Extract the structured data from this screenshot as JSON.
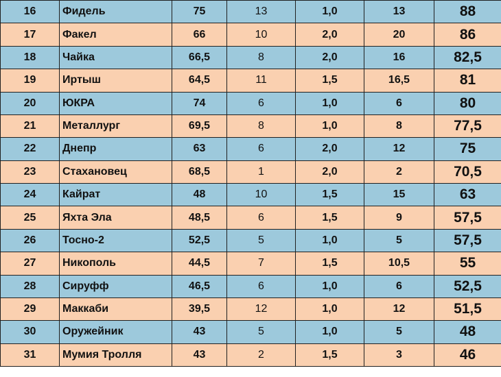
{
  "colors": {
    "row_blue": "#9dc9dc",
    "row_peach": "#fad0b0",
    "border": "#1f1f1f",
    "text": "#111111"
  },
  "rows": [
    {
      "num": "16",
      "team": "Фидель",
      "c": "75",
      "d": "13",
      "e": "1,0",
      "f": "13",
      "total": "88"
    },
    {
      "num": "17",
      "team": "Факел",
      "c": "66",
      "d": "10",
      "e": "2,0",
      "f": "20",
      "total": "86"
    },
    {
      "num": "18",
      "team": "Чайка",
      "c": "66,5",
      "d": "8",
      "e": "2,0",
      "f": "16",
      "total": "82,5"
    },
    {
      "num": "19",
      "team": "Иртыш",
      "c": "64,5",
      "d": "11",
      "e": "1,5",
      "f": "16,5",
      "total": "81"
    },
    {
      "num": "20",
      "team": "ЮКРА",
      "c": "74",
      "d": "6",
      "e": "1,0",
      "f": "6",
      "total": "80"
    },
    {
      "num": "21",
      "team": "Металлург",
      "c": "69,5",
      "d": "8",
      "e": "1,0",
      "f": "8",
      "total": "77,5"
    },
    {
      "num": "22",
      "team": "Днепр",
      "c": "63",
      "d": "6",
      "e": "2,0",
      "f": "12",
      "total": "75"
    },
    {
      "num": "23",
      "team": "Стахановец",
      "c": "68,5",
      "d": "1",
      "e": "2,0",
      "f": "2",
      "total": "70,5"
    },
    {
      "num": "24",
      "team": "Кайрат",
      "c": "48",
      "d": "10",
      "e": "1,5",
      "f": "15",
      "total": "63"
    },
    {
      "num": "25",
      "team": "Яхта Эла",
      "c": "48,5",
      "d": "6",
      "e": "1,5",
      "f": "9",
      "total": "57,5"
    },
    {
      "num": "26",
      "team": "Тосно-2",
      "c": "52,5",
      "d": "5",
      "e": "1,0",
      "f": "5",
      "total": "57,5"
    },
    {
      "num": "27",
      "team": "Никополь",
      "c": "44,5",
      "d": "7",
      "e": "1,5",
      "f": "10,5",
      "total": "55"
    },
    {
      "num": "28",
      "team": "Сируфф",
      "c": "46,5",
      "d": "6",
      "e": "1,0",
      "f": "6",
      "total": "52,5"
    },
    {
      "num": "29",
      "team": "Маккаби",
      "c": "39,5",
      "d": "12",
      "e": "1,0",
      "f": "12",
      "total": "51,5"
    },
    {
      "num": "30",
      "team": "Оружейник",
      "c": "43",
      "d": "5",
      "e": "1,0",
      "f": "5",
      "total": "48"
    },
    {
      "num": "31",
      "team": "Мумия Тролля",
      "c": "43",
      "d": "2",
      "e": "1,5",
      "f": "3",
      "total": "46"
    }
  ]
}
